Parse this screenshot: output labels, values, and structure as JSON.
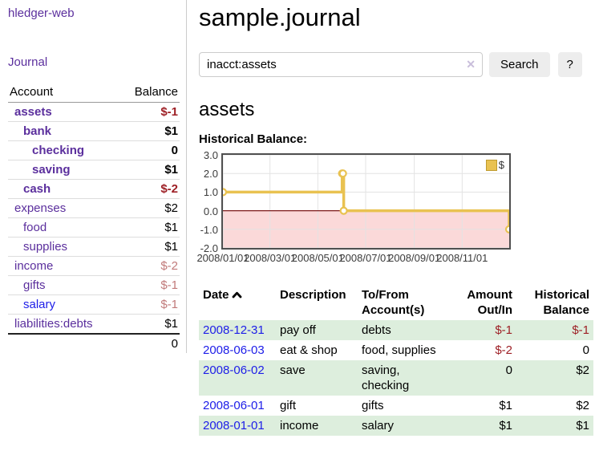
{
  "sidebar": {
    "app_title": "hledger-web",
    "nav": {
      "journal": "Journal"
    },
    "accounts_table": {
      "headers": {
        "account": "Account",
        "balance": "Balance"
      },
      "rows": [
        {
          "name": "assets",
          "balance": "$-1"
        },
        {
          "name": "bank",
          "balance": "$1"
        },
        {
          "name": "checking",
          "balance": "0"
        },
        {
          "name": "saving",
          "balance": "$1"
        },
        {
          "name": "cash",
          "balance": "$-2"
        },
        {
          "name": "expenses",
          "balance": "$2"
        },
        {
          "name": "food",
          "balance": "$1"
        },
        {
          "name": "supplies",
          "balance": "$1"
        },
        {
          "name": "income",
          "balance": "$-2"
        },
        {
          "name": "gifts",
          "balance": "$-1"
        },
        {
          "name": "salary",
          "balance": "$-1"
        },
        {
          "name": "liabilities:debts",
          "balance": "$1"
        }
      ],
      "total": "0"
    }
  },
  "main": {
    "title": "sample.journal",
    "search": {
      "value": "inacct:assets",
      "clear_icon": "✕",
      "search_button": "Search",
      "help_button": "?"
    },
    "section_title": "assets",
    "chart_label": "Historical Balance:"
  },
  "chart_data": {
    "type": "line",
    "style": "step",
    "title": "Historical Balance",
    "series": [
      {
        "name": "$",
        "color": "#e9c251",
        "points": [
          [
            "2008-01-01",
            1
          ],
          [
            "2008-06-01",
            2
          ],
          [
            "2008-06-02",
            2
          ],
          [
            "2008-06-03",
            0
          ],
          [
            "2008-12-31",
            -1
          ]
        ]
      }
    ],
    "x_ticks": [
      "2008/01/01",
      "2008/03/01",
      "2008/05/01",
      "2008/07/01",
      "2008/09/01",
      "2008/11/01"
    ],
    "y_ticks": [
      "3.0",
      "2.0",
      "1.0",
      "0.0",
      "-1.0",
      "-2.0"
    ],
    "ylim": [
      -2,
      3
    ],
    "xlim": [
      "2008-01-01",
      "2008-12-31"
    ],
    "grid": true,
    "legend": {
      "label": "$",
      "position": "top-right"
    },
    "colors": {
      "negative_region": "#fbd9d9",
      "zero_line": "#7d1a1a",
      "gridline": "#e3e3e3",
      "plot_border": "#4f4f4f"
    }
  },
  "register": {
    "headers": {
      "date": "Date",
      "description": "Description",
      "accounts": "To/From Account(s)",
      "amount": "Amount Out/In",
      "balance": "Historical Balance"
    },
    "rows": [
      {
        "date": "2008-12-31",
        "description": "pay off",
        "accounts": "debts",
        "amount": "$-1",
        "balance": "$-1"
      },
      {
        "date": "2008-06-03",
        "description": "eat & shop",
        "accounts": "food, supplies",
        "amount": "$-2",
        "balance": "0"
      },
      {
        "date": "2008-06-02",
        "description": "save",
        "accounts": "saving, checking",
        "amount": "0",
        "balance": "$2"
      },
      {
        "date": "2008-06-01",
        "description": "gift",
        "accounts": "gifts",
        "amount": "$1",
        "balance": "$2"
      },
      {
        "date": "2008-01-01",
        "description": "income",
        "accounts": "salary",
        "amount": "$1",
        "balance": "$1"
      }
    ]
  }
}
